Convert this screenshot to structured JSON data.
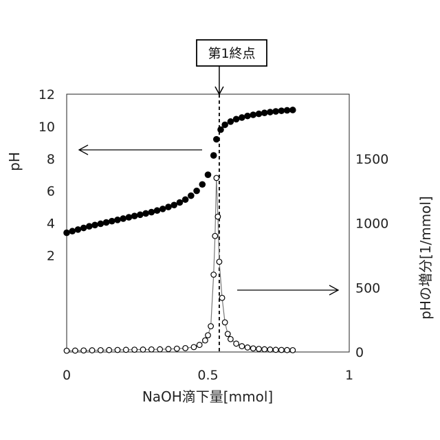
{
  "chart_data": {
    "type": "scatter",
    "title": "",
    "xlabel": "NaOH滴下量[mmol]",
    "ylabel_left": "pH",
    "ylabel_right": "pHの増分[1/mmol]",
    "xlim": [
      0,
      1
    ],
    "ylim_left": [
      -4,
      12
    ],
    "ylim_right": [
      0,
      2000
    ],
    "x_ticks": [
      "0",
      "0.5",
      "1"
    ],
    "y_ticks_left": [
      "2",
      "4",
      "6",
      "8",
      "10",
      "12"
    ],
    "y_ticks_right": [
      "0",
      "500",
      "1000",
      "1500"
    ],
    "annotation": "第1終点",
    "endpoint_x": 0.54,
    "grid": false,
    "series": [
      {
        "axis": "left",
        "marker": "filled-circle",
        "color": "#000000",
        "x": [
          0.0,
          0.02,
          0.04,
          0.06,
          0.08,
          0.1,
          0.12,
          0.14,
          0.16,
          0.18,
          0.2,
          0.22,
          0.24,
          0.26,
          0.28,
          0.3,
          0.32,
          0.34,
          0.36,
          0.38,
          0.4,
          0.42,
          0.44,
          0.46,
          0.48,
          0.5,
          0.52,
          0.53,
          0.545,
          0.56,
          0.58,
          0.6,
          0.62,
          0.64,
          0.66,
          0.68,
          0.7,
          0.72,
          0.74,
          0.76,
          0.78,
          0.8
        ],
        "y": [
          3.4,
          3.5,
          3.6,
          3.7,
          3.8,
          3.88,
          3.96,
          4.04,
          4.12,
          4.2,
          4.28,
          4.36,
          4.44,
          4.52,
          4.6,
          4.68,
          4.78,
          4.88,
          5.0,
          5.12,
          5.28,
          5.46,
          5.7,
          6.0,
          6.4,
          7.0,
          8.2,
          9.2,
          9.8,
          10.1,
          10.3,
          10.45,
          10.55,
          10.65,
          10.72,
          10.78,
          10.84,
          10.89,
          10.93,
          10.97,
          11.0,
          11.02
        ]
      },
      {
        "axis": "right",
        "marker": "open-circle",
        "color": "#000000",
        "x": [
          0.0,
          0.03,
          0.06,
          0.09,
          0.12,
          0.15,
          0.18,
          0.21,
          0.24,
          0.27,
          0.3,
          0.33,
          0.36,
          0.39,
          0.42,
          0.45,
          0.47,
          0.49,
          0.5,
          0.51,
          0.52,
          0.525,
          0.53,
          0.535,
          0.54,
          0.55,
          0.56,
          0.57,
          0.58,
          0.6,
          0.62,
          0.64,
          0.66,
          0.68,
          0.7,
          0.72,
          0.74,
          0.76,
          0.78,
          0.8
        ],
        "y": [
          10,
          11,
          12,
          13,
          14,
          15,
          16,
          17,
          18,
          19,
          20,
          21,
          23,
          26,
          30,
          38,
          55,
          90,
          130,
          200,
          600,
          900,
          1350,
          1050,
          700,
          420,
          230,
          140,
          100,
          65,
          45,
          35,
          28,
          24,
          21,
          19,
          17,
          16,
          15,
          14
        ]
      }
    ]
  },
  "arrows": [
    {
      "direction": "left",
      "target_axis": "left",
      "label": ""
    },
    {
      "direction": "right",
      "target_axis": "right",
      "label": ""
    }
  ]
}
